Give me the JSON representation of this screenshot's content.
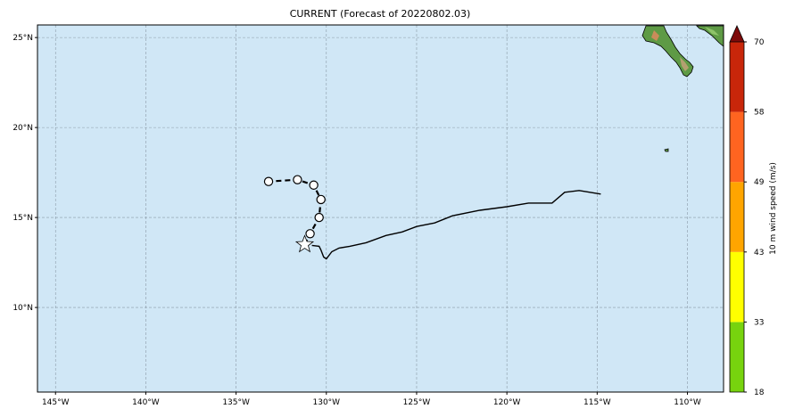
{
  "title": "CURRENT (Forecast of 20220802.03)",
  "map": {
    "lon_range": [
      -146,
      -108
    ],
    "lat_range": [
      5.3,
      25.7
    ],
    "ocean_color": "#d0e7f6",
    "grid_color": "#8a9aa8",
    "lat_ticks": [
      {
        "value": 25,
        "label": "25°N"
      },
      {
        "value": 20,
        "label": "20°N"
      },
      {
        "value": 15,
        "label": "15°N"
      },
      {
        "value": 10,
        "label": "10°N"
      }
    ],
    "lon_ticks": [
      {
        "value": -145,
        "label": "145°W"
      },
      {
        "value": -140,
        "label": "140°W"
      },
      {
        "value": -135,
        "label": "135°W"
      },
      {
        "value": -130,
        "label": "130°W"
      },
      {
        "value": -125,
        "label": "125°W"
      },
      {
        "value": -120,
        "label": "120°W"
      },
      {
        "value": -115,
        "label": "115°W"
      },
      {
        "value": -110,
        "label": "110°W"
      }
    ]
  },
  "track": {
    "past": [
      [
        -114.8,
        16.3
      ],
      [
        -116.0,
        16.5
      ],
      [
        -116.8,
        16.4
      ],
      [
        -117.5,
        15.8
      ],
      [
        -118.8,
        15.8
      ],
      [
        -120.0,
        15.6
      ],
      [
        -121.5,
        15.4
      ],
      [
        -123.0,
        15.1
      ],
      [
        -124.0,
        14.7
      ],
      [
        -125.0,
        14.5
      ],
      [
        -125.8,
        14.2
      ],
      [
        -126.7,
        14.0
      ],
      [
        -127.8,
        13.6
      ],
      [
        -128.7,
        13.4
      ],
      [
        -129.3,
        13.3
      ],
      [
        -129.7,
        13.1
      ],
      [
        -130.0,
        12.7
      ],
      [
        -130.15,
        12.8
      ],
      [
        -130.3,
        13.2
      ],
      [
        -130.4,
        13.4
      ],
      [
        -130.8,
        13.45
      ]
    ],
    "current_position": [
      -131.2,
      13.5
    ],
    "forecast": [
      [
        -130.9,
        14.1
      ],
      [
        -130.4,
        15.0
      ],
      [
        -130.3,
        16.0
      ],
      [
        -130.7,
        16.8
      ],
      [
        -131.6,
        17.1
      ],
      [
        -133.2,
        17.0
      ]
    ],
    "line_color": "#000000",
    "point_fill": "#ffffff"
  },
  "colorbar": {
    "label": "10 m wind speed (m/s)",
    "ticks": [
      "18",
      "33",
      "43",
      "49",
      "58",
      "70"
    ],
    "colors": [
      "#77d30e",
      "#ffff00",
      "#ffa500",
      "#ff6420",
      "#c8260a"
    ],
    "extend_color": "#7d0a0a"
  }
}
